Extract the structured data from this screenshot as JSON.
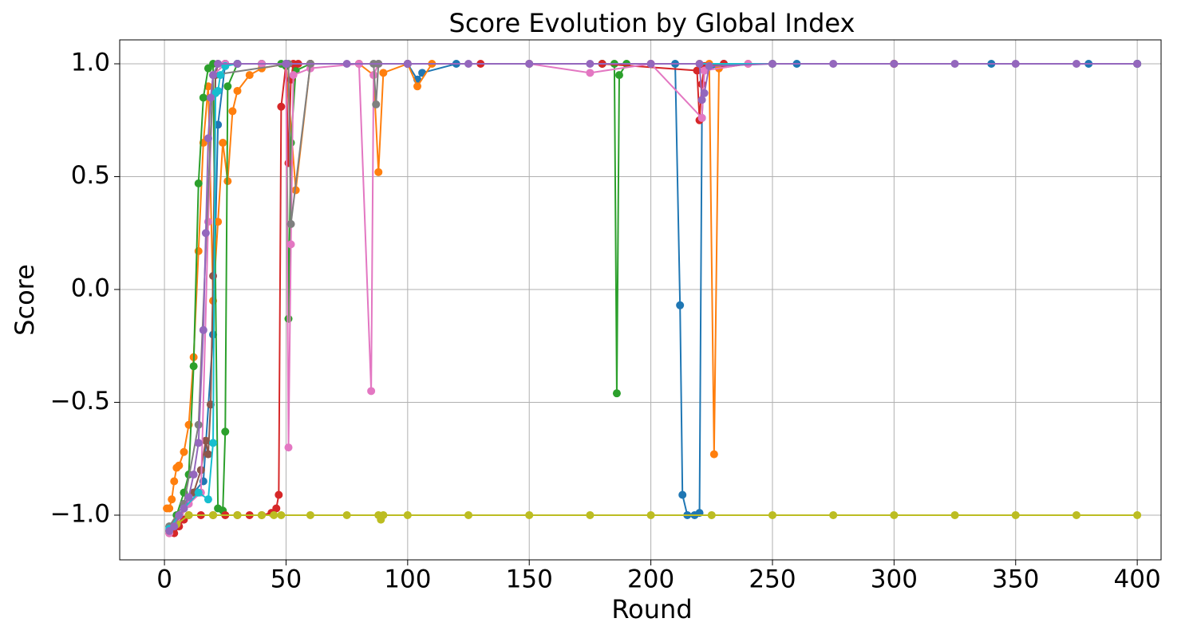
{
  "chart_data": {
    "type": "line",
    "title": "Score Evolution by Global Index",
    "x_label": "Round",
    "y_label": "Score",
    "xlim": [
      -18.4,
      409.8
    ],
    "ylim": [
      -1.198,
      1.106
    ],
    "xticks": [
      0,
      50,
      100,
      150,
      200,
      250,
      300,
      350,
      400
    ],
    "yticks": [
      {
        "value": -1.0,
        "label": "−1.0"
      },
      {
        "value": -0.5,
        "label": "−0.5"
      },
      {
        "value": 0.0,
        "label": "0.0"
      },
      {
        "value": 0.5,
        "label": "0.5"
      },
      {
        "value": 1.0,
        "label": "1.0"
      }
    ],
    "grid": true,
    "series": [
      {
        "color": "#1f77b4",
        "x": [
          2,
          5,
          8,
          12,
          16,
          20,
          22,
          25,
          30,
          40,
          60,
          80,
          100,
          104,
          106,
          120,
          150,
          180,
          200,
          210,
          212,
          213,
          215,
          218,
          220,
          221,
          222,
          230,
          260,
          300,
          340,
          380,
          400
        ],
        "values": [
          -1.07,
          -1.05,
          -0.95,
          -0.9,
          -0.85,
          -0.2,
          0.73,
          1,
          1,
          1,
          1,
          1,
          1,
          0.93,
          0.96,
          1,
          1,
          1,
          1,
          1,
          -0.07,
          -0.91,
          -1,
          -1,
          -0.99,
          0.76,
          0.97,
          1,
          1,
          1,
          1,
          1,
          1
        ]
      },
      {
        "color": "#ff7f0e",
        "x": [
          1,
          2,
          3,
          4,
          5,
          6,
          8,
          10,
          12,
          14,
          16,
          18,
          20,
          22,
          24,
          26,
          28,
          30,
          35,
          40,
          50,
          54,
          60,
          80,
          86,
          88,
          90,
          100,
          104,
          110,
          150,
          200,
          220,
          224,
          226,
          228,
          240,
          300,
          400
        ],
        "values": [
          -0.97,
          -0.97,
          -0.93,
          -0.85,
          -0.79,
          -0.78,
          -0.72,
          -0.6,
          -0.3,
          0.17,
          0.65,
          0.9,
          -0.05,
          0.3,
          0.65,
          0.48,
          0.79,
          0.88,
          0.95,
          0.98,
          1,
          0.44,
          1,
          1,
          0.95,
          0.52,
          0.96,
          1,
          0.9,
          1,
          1,
          1,
          1,
          1,
          -0.73,
          0.98,
          1,
          1,
          1
        ]
      },
      {
        "color": "#2ca02c",
        "x": [
          2,
          5,
          8,
          10,
          12,
          14,
          16,
          18,
          20,
          22,
          24,
          25,
          26,
          30,
          40,
          48,
          50,
          51,
          52,
          54,
          60,
          100,
          150,
          180,
          185,
          186,
          187,
          190,
          250,
          400
        ],
        "values": [
          -1.05,
          -1,
          -0.9,
          -0.82,
          -0.34,
          0.47,
          0.85,
          0.98,
          1,
          -0.97,
          -0.98,
          -0.63,
          0.9,
          1,
          1,
          1,
          0.99,
          -0.13,
          0.65,
          0.97,
          1,
          1,
          1,
          1,
          1,
          -0.46,
          0.95,
          1,
          1,
          1
        ]
      },
      {
        "color": "#d62728",
        "x": [
          2,
          4,
          6,
          8,
          10,
          15,
          20,
          25,
          30,
          35,
          40,
          44,
          46,
          47,
          48,
          50,
          51,
          52,
          53,
          55,
          60,
          100,
          130,
          180,
          219,
          220,
          221,
          222,
          230,
          300,
          400
        ],
        "values": [
          -1.08,
          -1.08,
          -1.05,
          -1.02,
          -1,
          -1,
          -1,
          -1,
          -1,
          -1,
          -1,
          -0.99,
          -0.97,
          -0.91,
          0.81,
          1,
          0.56,
          0.93,
          1,
          1,
          1,
          1,
          1,
          1,
          0.97,
          0.75,
          0.91,
          0.99,
          1,
          1,
          1
        ]
      },
      {
        "color": "#8c564b",
        "x": [
          2,
          5,
          8,
          12,
          15,
          17,
          18,
          19,
          20,
          21,
          22,
          25,
          30,
          50,
          100,
          400
        ],
        "values": [
          -1.07,
          -1.03,
          -0.97,
          -0.9,
          -0.8,
          -0.67,
          -0.73,
          -0.51,
          0.06,
          0.95,
          1,
          1,
          1,
          1,
          1,
          1
        ]
      },
      {
        "color": "#e377c2",
        "x": [
          2,
          5,
          10,
          15,
          18,
          20,
          25,
          40,
          50,
          51,
          52,
          53,
          60,
          80,
          85,
          86,
          88,
          100,
          150,
          175,
          200,
          221,
          222,
          240,
          400
        ],
        "values": [
          -1.08,
          -1.04,
          -0.95,
          -0.9,
          0.3,
          0.95,
          1,
          1,
          1,
          -0.7,
          0.2,
          0.95,
          0.98,
          1,
          -0.45,
          0.95,
          1,
          1,
          1,
          0.96,
          1,
          0.76,
          0.97,
          1,
          1
        ]
      },
      {
        "color": "#7f7f7f",
        "x": [
          2,
          8,
          14,
          20,
          51,
          52,
          60,
          86,
          87,
          88,
          100,
          400
        ],
        "values": [
          -1.05,
          -0.95,
          -0.6,
          0.95,
          1,
          0.29,
          1,
          1,
          0.82,
          1,
          1,
          1
        ]
      },
      {
        "color": "#bcbd22",
        "x": [
          2,
          5,
          10,
          20,
          30,
          40,
          45,
          48,
          60,
          75,
          88,
          89,
          90,
          100,
          125,
          150,
          175,
          200,
          225,
          250,
          275,
          300,
          325,
          350,
          375,
          400
        ],
        "values": [
          -1.07,
          -1.04,
          -1,
          -1,
          -1,
          -1,
          -1,
          -1,
          -1,
          -1,
          -1,
          -1.02,
          -1,
          -1,
          -1,
          -1,
          -1,
          -1,
          -1,
          -1,
          -1,
          -1,
          -1,
          -1,
          -1,
          -1
        ]
      },
      {
        "color": "#17becf",
        "x": [
          2,
          8,
          14,
          18,
          20,
          21,
          22,
          23,
          25,
          30,
          50,
          400
        ],
        "values": [
          -1.06,
          -0.97,
          -0.9,
          -0.93,
          -0.68,
          0.87,
          0.88,
          0.95,
          0.99,
          1,
          1,
          1
        ]
      },
      {
        "color": "#9467bd",
        "x": [
          2,
          4,
          6,
          8,
          10,
          12,
          14,
          16,
          17,
          18,
          19,
          20,
          22,
          30,
          50,
          75,
          100,
          125,
          150,
          175,
          200,
          220,
          221,
          222,
          224,
          250,
          275,
          300,
          325,
          350,
          375,
          400
        ],
        "values": [
          -1.07,
          -1.05,
          -1,
          -0.97,
          -0.92,
          -0.82,
          -0.68,
          -0.18,
          0.25,
          0.67,
          0.85,
          0.95,
          1,
          1,
          1,
          1,
          1,
          1,
          1,
          1,
          1,
          1,
          0.84,
          0.87,
          0.99,
          1,
          1,
          1,
          1,
          1,
          1,
          1
        ]
      }
    ]
  }
}
